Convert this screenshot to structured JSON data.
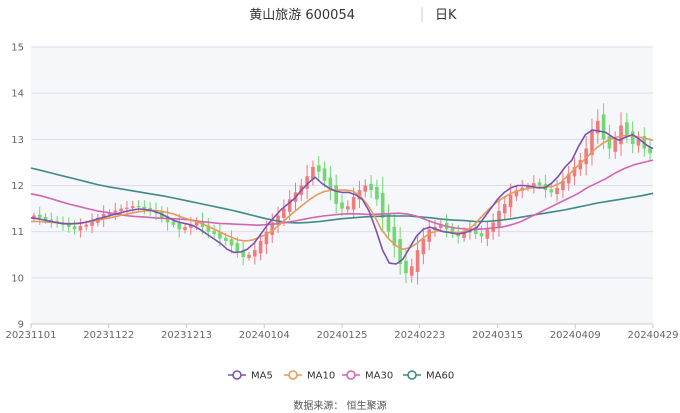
{
  "header": {
    "stock_name": "黄山旅游 600054",
    "period": "日K"
  },
  "source": "数据来源： 恒生聚源",
  "colors": {
    "up": "#f27a7a",
    "down": "#6fd86f",
    "plot_bg": "#f6f7fb",
    "grid": "#dcdcef",
    "axis": "#c8c8c8",
    "MA5": "#7a52b0",
    "MA10": "#e89a5a",
    "MA30": "#d465b2",
    "MA60": "#3d8a86"
  },
  "chart_data": {
    "type": "candlestick",
    "ylim": [
      9,
      15
    ],
    "yticks": [
      "9",
      "10",
      "11",
      "12",
      "13",
      "14",
      "15"
    ],
    "xticks": [
      "20231101",
      "20231122",
      "20231213",
      "20240104",
      "20240125",
      "20240223",
      "20240315",
      "20240409",
      "20240429"
    ],
    "grid": true,
    "legend_position": "bottom",
    "legend": [
      "MA5",
      "MA10",
      "MA30",
      "MA60"
    ],
    "closes": [
      11.35,
      11.3,
      11.25,
      11.22,
      11.18,
      11.15,
      11.1,
      11.05,
      11.12,
      11.15,
      11.22,
      11.3,
      11.38,
      11.42,
      11.46,
      11.5,
      11.52,
      11.55,
      11.53,
      11.5,
      11.45,
      11.4,
      11.3,
      11.2,
      11.15,
      11.05,
      11.1,
      11.15,
      11.2,
      11.1,
      11.0,
      10.95,
      10.85,
      10.8,
      10.7,
      10.55,
      10.45,
      10.5,
      10.6,
      10.8,
      11.0,
      11.2,
      11.35,
      11.5,
      11.7,
      11.85,
      12.0,
      12.2,
      12.4,
      12.3,
      12.1,
      11.9,
      11.6,
      11.5,
      11.55,
      11.75,
      11.9,
      12.0,
      11.9,
      11.7,
      11.3,
      11.0,
      10.7,
      10.3,
      10.1,
      10.25,
      10.6,
      10.85,
      11.05,
      11.1,
      11.15,
      11.05,
      10.95,
      10.9,
      11.0,
      11.05,
      10.95,
      10.9,
      11.05,
      11.2,
      11.45,
      11.6,
      11.8,
      11.9,
      11.95,
      12.0,
      12.05,
      12.0,
      11.9,
      11.85,
      11.95,
      12.1,
      12.25,
      12.4,
      12.55,
      12.8,
      13.2,
      13.4,
      13.0,
      12.8,
      13.0,
      13.3,
      13.1,
      12.9,
      13.0,
      12.8,
      12.7
    ],
    "ma5": [
      11.3,
      11.28,
      11.25,
      11.22,
      11.19,
      11.17,
      11.17,
      11.18,
      11.2,
      11.24,
      11.28,
      11.32,
      11.36,
      11.4,
      11.44,
      11.47,
      11.49,
      11.48,
      11.45,
      11.4,
      11.33,
      11.25,
      11.2,
      11.17,
      11.13,
      11.05,
      10.95,
      10.85,
      10.75,
      10.62,
      10.55,
      10.56,
      10.62,
      10.75,
      10.95,
      11.15,
      11.32,
      11.48,
      11.6,
      11.72,
      11.9,
      12.05,
      12.18,
      12.05,
      11.95,
      11.88,
      11.85,
      11.85,
      11.8,
      11.7,
      11.45,
      11.05,
      10.6,
      10.32,
      10.3,
      10.4,
      10.65,
      10.9,
      11.05,
      11.1,
      11.05,
      11.0,
      10.98,
      10.95,
      10.97,
      11.02,
      11.1,
      11.3,
      11.5,
      11.7,
      11.85,
      11.95,
      12.0,
      12.0,
      11.98,
      11.95,
      11.95,
      12.05,
      12.2,
      12.4,
      12.55,
      12.85,
      13.1,
      13.2,
      13.18,
      13.15,
      13.05,
      12.98,
      13.05,
      13.1,
      13.0,
      12.88,
      12.8
    ],
    "ma10": [
      11.22,
      11.22,
      11.21,
      11.2,
      11.19,
      11.18,
      11.18,
      11.19,
      11.21,
      11.24,
      11.27,
      11.3,
      11.33,
      11.37,
      11.4,
      11.43,
      11.45,
      11.46,
      11.45,
      11.42,
      11.38,
      11.32,
      11.27,
      11.22,
      11.17,
      11.1,
      11.03,
      10.95,
      10.88,
      10.82,
      10.8,
      10.82,
      10.88,
      10.95,
      11.05,
      11.18,
      11.32,
      11.45,
      11.58,
      11.7,
      11.8,
      11.87,
      11.9,
      11.9,
      11.9,
      11.88,
      11.78,
      11.6,
      11.35,
      11.05,
      10.85,
      10.7,
      10.62,
      10.65,
      10.75,
      10.88,
      10.98,
      11.02,
      11.0,
      10.98,
      10.98,
      11.03,
      11.15,
      11.32,
      11.48,
      11.62,
      11.73,
      11.82,
      11.88,
      11.92,
      11.95,
      11.96,
      11.97,
      11.98,
      12.05,
      12.2,
      12.35,
      12.5,
      12.65,
      12.8,
      12.92,
      13.0,
      13.05,
      13.08,
      13.08,
      13.05,
      13.02,
      12.98
    ],
    "ma30": [
      11.82,
      11.78,
      11.72,
      11.66,
      11.6,
      11.55,
      11.5,
      11.45,
      11.42,
      11.38,
      11.35,
      11.33,
      11.32,
      11.3,
      11.29,
      11.28,
      11.27,
      11.25,
      11.22,
      11.2,
      11.18,
      11.17,
      11.16,
      11.15,
      11.14,
      11.15,
      11.17,
      11.2,
      11.23,
      11.27,
      11.31,
      11.34,
      11.36,
      11.38,
      11.39,
      11.38,
      11.37,
      11.38,
      11.39,
      11.4,
      11.38,
      11.33,
      11.25,
      11.18,
      11.12,
      11.08,
      11.06,
      11.05,
      11.06,
      11.08,
      11.1,
      11.15,
      11.22,
      11.32,
      11.42,
      11.52,
      11.62,
      11.72,
      11.82,
      11.95,
      12.05,
      12.15,
      12.27,
      12.37,
      12.45,
      12.5,
      12.55
    ],
    "ma60": [
      12.38,
      12.32,
      12.26,
      12.2,
      12.14,
      12.08,
      12.02,
      11.97,
      11.93,
      11.89,
      11.85,
      11.81,
      11.77,
      11.72,
      11.67,
      11.62,
      11.57,
      11.52,
      11.47,
      11.41,
      11.35,
      11.29,
      11.24,
      11.2,
      11.19,
      11.2,
      11.22,
      11.25,
      11.28,
      11.3,
      11.32,
      11.33,
      11.34,
      11.34,
      11.34,
      11.32,
      11.3,
      11.27,
      11.25,
      11.24,
      11.22,
      11.22,
      11.24,
      11.27,
      11.31,
      11.35,
      11.39,
      11.43,
      11.47,
      11.52,
      11.57,
      11.62,
      11.66,
      11.7,
      11.74,
      11.78,
      11.83
    ]
  }
}
